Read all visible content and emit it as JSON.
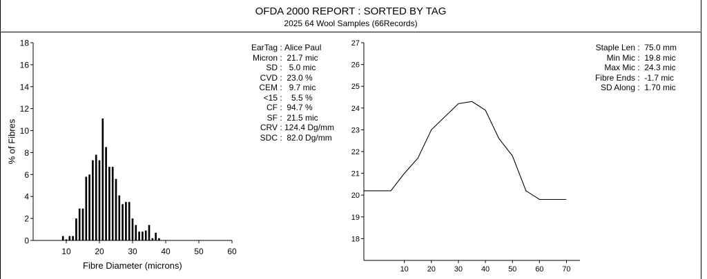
{
  "report": {
    "title": "OFDA 2000 REPORT : SORTED BY TAG",
    "subtitle": "2025 64 Wool Samples (66Records)"
  },
  "stats_left": [
    {
      "label": "EarTag",
      "value": "Alice Paul"
    },
    {
      "label": "Micron",
      "value": " 21.7 mic"
    },
    {
      "label": "SD",
      "value": "  5.0 mic"
    },
    {
      "label": "CVD",
      "value": " 23.0 %"
    },
    {
      "label": "CEM",
      "value": "  9.7 mic"
    },
    {
      "label": "<15",
      "value": "   5.5 %"
    },
    {
      "label": "CF",
      "value": " 94.7 %"
    },
    {
      "label": "SF",
      "value": " 21.5 mic"
    },
    {
      "label": "CRV",
      "value": "124.4 Dg/mm"
    },
    {
      "label": "SDC",
      "value": " 82.0 Dg/mm"
    }
  ],
  "stats_right": [
    {
      "label": "Staple Len",
      "value": " 75.0 mm"
    },
    {
      "label": "Min Mic",
      "value": " 19.8 mic"
    },
    {
      "label": "Max Mic",
      "value": " 24.3 mic"
    },
    {
      "label": "Fibre Ends",
      "value": " -1.7 mic"
    },
    {
      "label": "SD Along",
      "value": " 1.70 mic"
    }
  ],
  "chart_data": [
    {
      "type": "bar",
      "xlabel": "Fibre Diameter (microns)",
      "ylabel": "% of Fibres",
      "xlim": [
        0,
        60
      ],
      "ylim": [
        0,
        18
      ],
      "xticks": [
        10,
        20,
        30,
        40,
        50,
        60
      ],
      "yticks": [
        0,
        2,
        4,
        6,
        8,
        10,
        12,
        14,
        16,
        18
      ],
      "x": [
        9,
        10,
        11,
        12,
        13,
        14,
        15,
        16,
        17,
        18,
        19,
        20,
        21,
        22,
        23,
        24,
        25,
        26,
        27,
        28,
        29,
        30,
        31,
        32,
        33,
        34,
        35,
        36,
        37,
        38
      ],
      "values": [
        0.4,
        0.1,
        0.4,
        0.4,
        2.0,
        2.9,
        2.9,
        5.8,
        6.0,
        7.3,
        7.8,
        7.3,
        11.1,
        8.5,
        6.7,
        6.7,
        5.6,
        4.1,
        3.3,
        3.5,
        3.5,
        2.0,
        1.4,
        0.8,
        0.8,
        0.9,
        1.4,
        0.2,
        0.7,
        0.2
      ]
    },
    {
      "type": "line",
      "xlim": [
        -5,
        75
      ],
      "ylim": [
        17,
        27
      ],
      "xticks": [
        10,
        20,
        30,
        40,
        50,
        60,
        70
      ],
      "yticks": [
        18,
        19,
        20,
        21,
        22,
        23,
        24,
        25,
        26,
        27
      ],
      "x": [
        -5,
        0,
        5,
        10,
        15,
        20,
        25,
        30,
        35,
        40,
        45,
        50,
        55,
        60,
        70
      ],
      "values": [
        20.2,
        20.2,
        20.2,
        21.0,
        21.7,
        23.0,
        23.6,
        24.2,
        24.3,
        23.9,
        22.6,
        21.8,
        20.2,
        19.8,
        19.8
      ]
    }
  ]
}
